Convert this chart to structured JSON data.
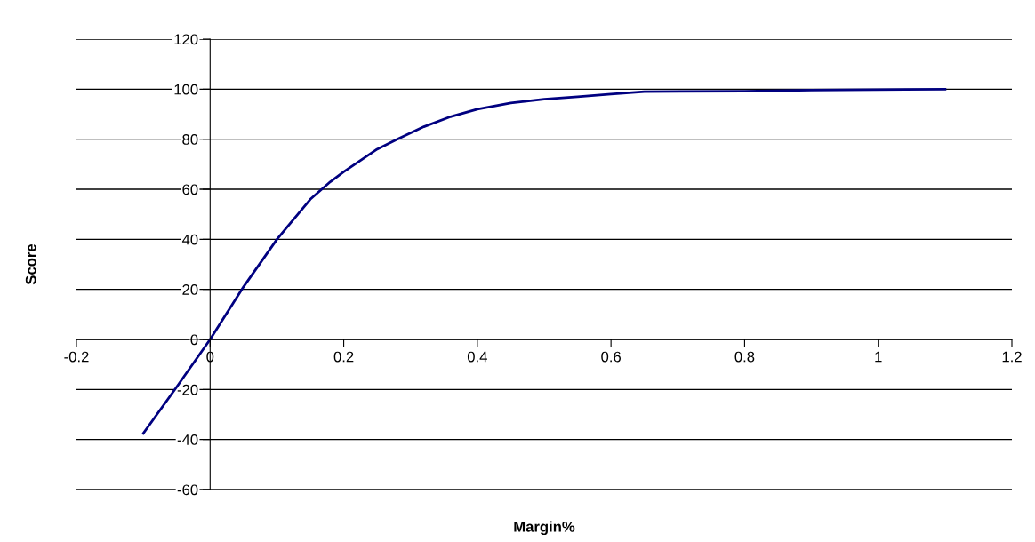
{
  "chart_data": {
    "type": "line",
    "xlabel": "Margin%",
    "ylabel": "Score",
    "xlim": [
      -0.2,
      1.2
    ],
    "xticks": [
      -0.2,
      0,
      0.2,
      0.4,
      0.6,
      0.8,
      1,
      1.2
    ],
    "ylim": [
      -60,
      120
    ],
    "yticks": [
      -60,
      -40,
      -20,
      0,
      20,
      40,
      60,
      80,
      100,
      120
    ],
    "grid": "y",
    "marker": "none",
    "line_style": "solid",
    "series": [
      {
        "color": "#000080",
        "x": [
          -0.1,
          -0.05,
          0,
          0.05,
          0.1,
          0.15,
          0.18,
          0.2,
          0.25,
          0.28,
          0.32,
          0.36,
          0.4,
          0.45,
          0.5,
          0.55,
          0.6,
          0.65,
          0.8,
          0.9,
          1.1
        ],
        "values": [
          -37.6,
          -19,
          0,
          21,
          40,
          56,
          63,
          67,
          76,
          80,
          85,
          89,
          92,
          94.5,
          96,
          97,
          98,
          99,
          99.2,
          99.6,
          100
        ]
      }
    ]
  }
}
